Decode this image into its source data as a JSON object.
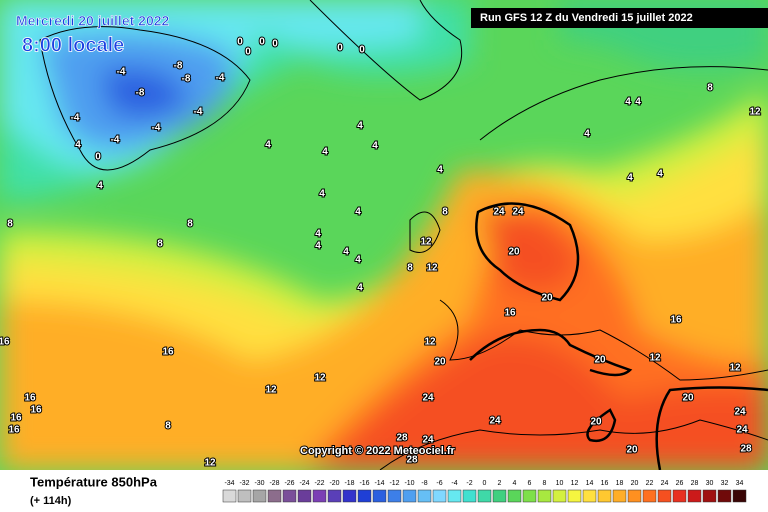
{
  "header": {
    "date": "Mercredi 20 juillet 2022",
    "time": "8:00 locale",
    "run": "Run GFS 12 Z du Vendredi 15 juillet 2022"
  },
  "map": {
    "copyright": "Copyright © 2022 Meteociel.fr",
    "contour_labels": [
      0,
      0,
      0,
      0,
      0,
      0,
      0,
      -4,
      -4,
      -4,
      -4,
      -4,
      -4,
      -8,
      -8,
      -8,
      4,
      4,
      4,
      4,
      4,
      4,
      4,
      4,
      4,
      4,
      4,
      4,
      4,
      4,
      4,
      4,
      4,
      4,
      4,
      8,
      8,
      8,
      8,
      8,
      8,
      8,
      12,
      12,
      12,
      12,
      12,
      12,
      12,
      12,
      12,
      16,
      16,
      16,
      16,
      16,
      16,
      16,
      16,
      20,
      20,
      20,
      20,
      20,
      20,
      20,
      24,
      24,
      24,
      24,
      24,
      24,
      24,
      28,
      28,
      28
    ]
  },
  "footer": {
    "title": "Température 850hPa",
    "lead": "(+ 114h)"
  },
  "scale": {
    "values": [
      -34,
      -32,
      -30,
      -28,
      -26,
      -24,
      -22,
      -20,
      -18,
      -16,
      -14,
      -12,
      -10,
      -8,
      -6,
      -4,
      -2,
      0,
      2,
      4,
      6,
      8,
      10,
      12,
      14,
      16,
      18,
      20,
      22,
      24,
      26,
      28,
      30,
      32,
      34
    ],
    "colors": [
      "#d9d9d9",
      "#bfbfbf",
      "#a6a6a6",
      "#8c6d8c",
      "#7a4f9a",
      "#6a3d9a",
      "#7b3fb5",
      "#5a3fb8",
      "#3333cc",
      "#1f3fd6",
      "#2a5fe0",
      "#3d7fe8",
      "#4f9ff0",
      "#66bff5",
      "#80d8ff",
      "#66e8f0",
      "#40e0d0",
      "#3fd9a8",
      "#40d080",
      "#5ad65a",
      "#7ee04a",
      "#a8e840",
      "#d4f040",
      "#f5f540",
      "#ffe040",
      "#ffc830",
      "#ffae28",
      "#ff9020",
      "#ff7020",
      "#f55020",
      "#e83020",
      "#cc1a1a",
      "#a01010",
      "#700a0a",
      "#3a0505"
    ]
  }
}
